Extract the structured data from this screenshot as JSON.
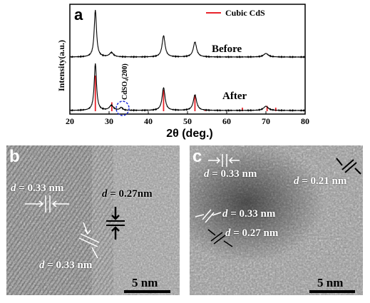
{
  "figure": {
    "panel_a": {
      "label": "a",
      "legend_label": "Cubic CdS",
      "legend_color": "#e8242b",
      "annotation": "CdSO₄(200)",
      "trace_labels": {
        "before": "Before",
        "after": "After"
      },
      "circle_color": "#1f2dd6"
    },
    "panel_b": {
      "label": "b",
      "annotations": [
        {
          "italic": "d",
          "rest": " = 0.33 nm"
        },
        {
          "italic": "d",
          "rest": " = 0.27nm"
        },
        {
          "italic": "d",
          "rest": " = 0.33 nm"
        }
      ],
      "scale_label": "5 nm"
    },
    "panel_c": {
      "label": "c",
      "annotations": [
        {
          "italic": "d",
          "rest": " = 0.33 nm"
        },
        {
          "italic": "d",
          "rest": " = 0.21 nm"
        },
        {
          "italic": "d",
          "rest": " = 0.33 nm"
        },
        {
          "italic": "d",
          "rest": " = 0.27 nm"
        }
      ],
      "scale_label": "5 nm"
    }
  },
  "chart_data": {
    "type": "line",
    "title": "",
    "xlabel": "2θ (deg.)",
    "ylabel": "Intensity(a.u.)",
    "xlim": [
      20,
      80
    ],
    "x_ticks": [
      20,
      30,
      40,
      50,
      60,
      70,
      80
    ],
    "y_ticks": "none",
    "grid": false,
    "legend": {
      "placement": "top-right",
      "entries": [
        "Cubic CdS"
      ]
    },
    "series": [
      {
        "name": "Before",
        "peaks": [
          {
            "x": 26.5,
            "h": 0.66,
            "w": 0.35
          },
          {
            "x": 30.6,
            "h": 0.06,
            "w": 0.6
          },
          {
            "x": 43.9,
            "h": 0.3,
            "w": 0.45
          },
          {
            "x": 51.9,
            "h": 0.21,
            "w": 0.5
          },
          {
            "x": 70.0,
            "h": 0.05,
            "w": 0.7
          }
        ]
      },
      {
        "name": "After",
        "peaks": [
          {
            "x": 26.5,
            "h": 0.66,
            "w": 0.35
          },
          {
            "x": 30.6,
            "h": 0.07,
            "w": 0.6
          },
          {
            "x": 33.1,
            "h": 0.04,
            "w": 0.4
          },
          {
            "x": 43.9,
            "h": 0.32,
            "w": 0.45
          },
          {
            "x": 51.9,
            "h": 0.22,
            "w": 0.5
          },
          {
            "x": 70.0,
            "h": 0.06,
            "w": 0.7
          }
        ]
      },
      {
        "name": "Cubic CdS",
        "type": "reference-sticks",
        "x": [
          26.5,
          30.7,
          43.9,
          51.9,
          54.5,
          64.0,
          70.3,
          72.5
        ],
        "y": [
          1.0,
          0.25,
          0.6,
          0.45,
          0.05,
          0.1,
          0.15,
          0.1
        ]
      }
    ]
  }
}
